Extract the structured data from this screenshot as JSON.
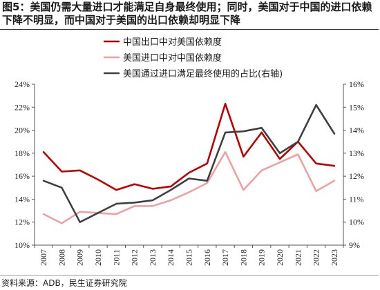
{
  "header": {
    "title": "图5：美国仍需大量进口才能满足自身最终使用；同时，美国对于中国的进口依赖下降不明显，而中国对于美国的出口依赖却明显下降"
  },
  "footer": {
    "source": "资料来源：ADB，民生证券研究院"
  },
  "chart_data": {
    "type": "line",
    "categories": [
      "2007",
      "2008",
      "2009",
      "2010",
      "2011",
      "2012",
      "2013",
      "2014",
      "2015",
      "2016",
      "2017",
      "2018",
      "2019",
      "2020",
      "2021",
      "2022",
      "2023"
    ],
    "y_left": {
      "min": 10,
      "max": 24,
      "step": 2,
      "format": "%"
    },
    "y_right": {
      "min": 9,
      "max": 16,
      "step": 1,
      "format": "%"
    },
    "left_ticks": [
      "10%",
      "12%",
      "14%",
      "16%",
      "18%",
      "20%",
      "22%",
      "24%"
    ],
    "right_ticks": [
      "9%",
      "10%",
      "11%",
      "12%",
      "13%",
      "14%",
      "15%",
      "16%"
    ],
    "legend_position": "top-left",
    "grid": false,
    "series": [
      {
        "name": "中国出口中对美国依赖度",
        "axis": "left",
        "color": "#c00000",
        "values": [
          18.1,
          16.4,
          16.5,
          15.7,
          14.8,
          15.3,
          14.9,
          15.1,
          16.3,
          17.1,
          22.3,
          17.7,
          19.8,
          17.5,
          19.0,
          17.1,
          16.9
        ]
      },
      {
        "name": "美国进口中对中国依赖度",
        "axis": "left",
        "color": "#f0a0a3",
        "values": [
          12.7,
          11.9,
          12.9,
          12.8,
          12.7,
          13.4,
          13.4,
          13.9,
          14.6,
          15.4,
          18.1,
          14.8,
          16.5,
          17.2,
          17.9,
          14.7,
          15.6
        ]
      },
      {
        "name": "美国通过进口满足最终使用的占比(右轴)",
        "axis": "right",
        "color": "#3f3f3f",
        "values": [
          11.8,
          11.5,
          10.0,
          10.4,
          10.8,
          10.85,
          10.95,
          11.4,
          11.9,
          11.8,
          13.9,
          13.95,
          14.1,
          13.0,
          13.5,
          15.1,
          13.85
        ]
      }
    ]
  }
}
